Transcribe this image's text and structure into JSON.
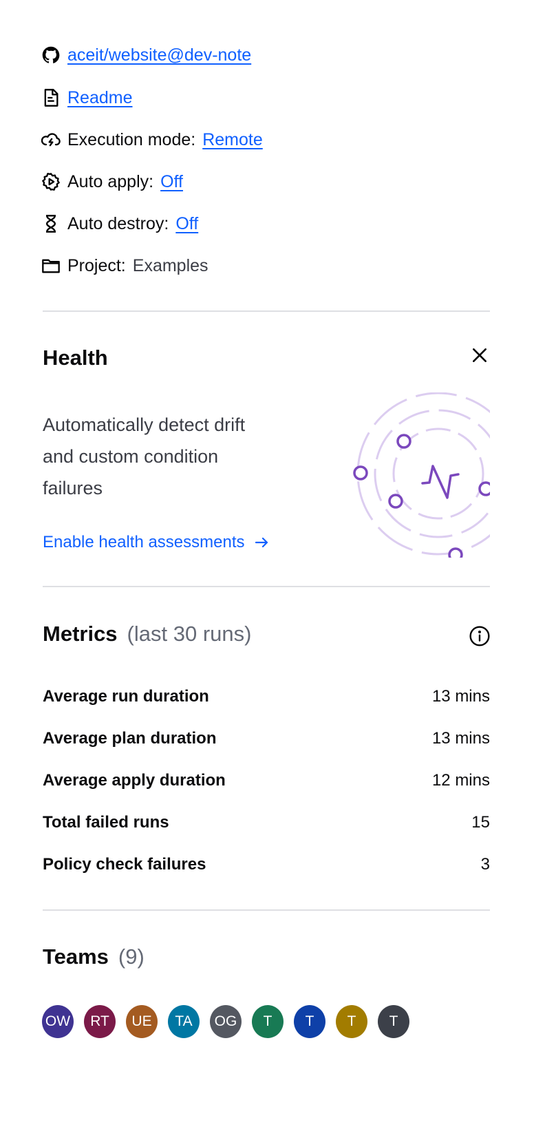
{
  "info": {
    "repo": {
      "icon": "github-icon",
      "link": "aceit/website@dev-note"
    },
    "readme": {
      "icon": "file-text-icon",
      "link": "Readme"
    },
    "execution_mode": {
      "icon": "cloud-lightning-icon",
      "label": "Execution mode:",
      "value": "Remote"
    },
    "auto_apply": {
      "icon": "gear-play-icon",
      "label": "Auto apply:",
      "value": "Off"
    },
    "auto_destroy": {
      "icon": "hourglass-icon",
      "label": "Auto destroy:",
      "value": "Off"
    },
    "project": {
      "icon": "folder-icon",
      "label": "Project:",
      "value": "Examples"
    }
  },
  "health": {
    "title": "Health",
    "close_icon": "close-icon",
    "description_lines": [
      "Automatically detect drift",
      "and custom condition",
      "failures"
    ],
    "cta": "Enable health assessments",
    "cta_icon": "arrow-right-icon",
    "accent": "#7b48bd"
  },
  "metrics": {
    "title": "Metrics",
    "subtitle": "(last 30 runs)",
    "info_icon": "info-icon",
    "rows": [
      {
        "label": "Average run duration",
        "value": "13 mins"
      },
      {
        "label": "Average plan duration",
        "value": "13 mins"
      },
      {
        "label": "Average apply duration",
        "value": "12 mins"
      },
      {
        "label": "Total failed runs",
        "value": "15"
      },
      {
        "label": "Policy check failures",
        "value": "3"
      }
    ]
  },
  "teams": {
    "title": "Teams",
    "count": "(9)",
    "avatars": [
      {
        "initials": "OW",
        "color": "#3f3392"
      },
      {
        "initials": "RT",
        "color": "#7b1a48"
      },
      {
        "initials": "UE",
        "color": "#a45b21"
      },
      {
        "initials": "TA",
        "color": "#0077a3"
      },
      {
        "initials": "OG",
        "color": "#545861"
      },
      {
        "initials": "T",
        "color": "#187a54"
      },
      {
        "initials": "T",
        "color": "#0e40a8"
      },
      {
        "initials": "T",
        "color": "#a27c00"
      },
      {
        "initials": "T",
        "color": "#3c4049"
      }
    ]
  }
}
